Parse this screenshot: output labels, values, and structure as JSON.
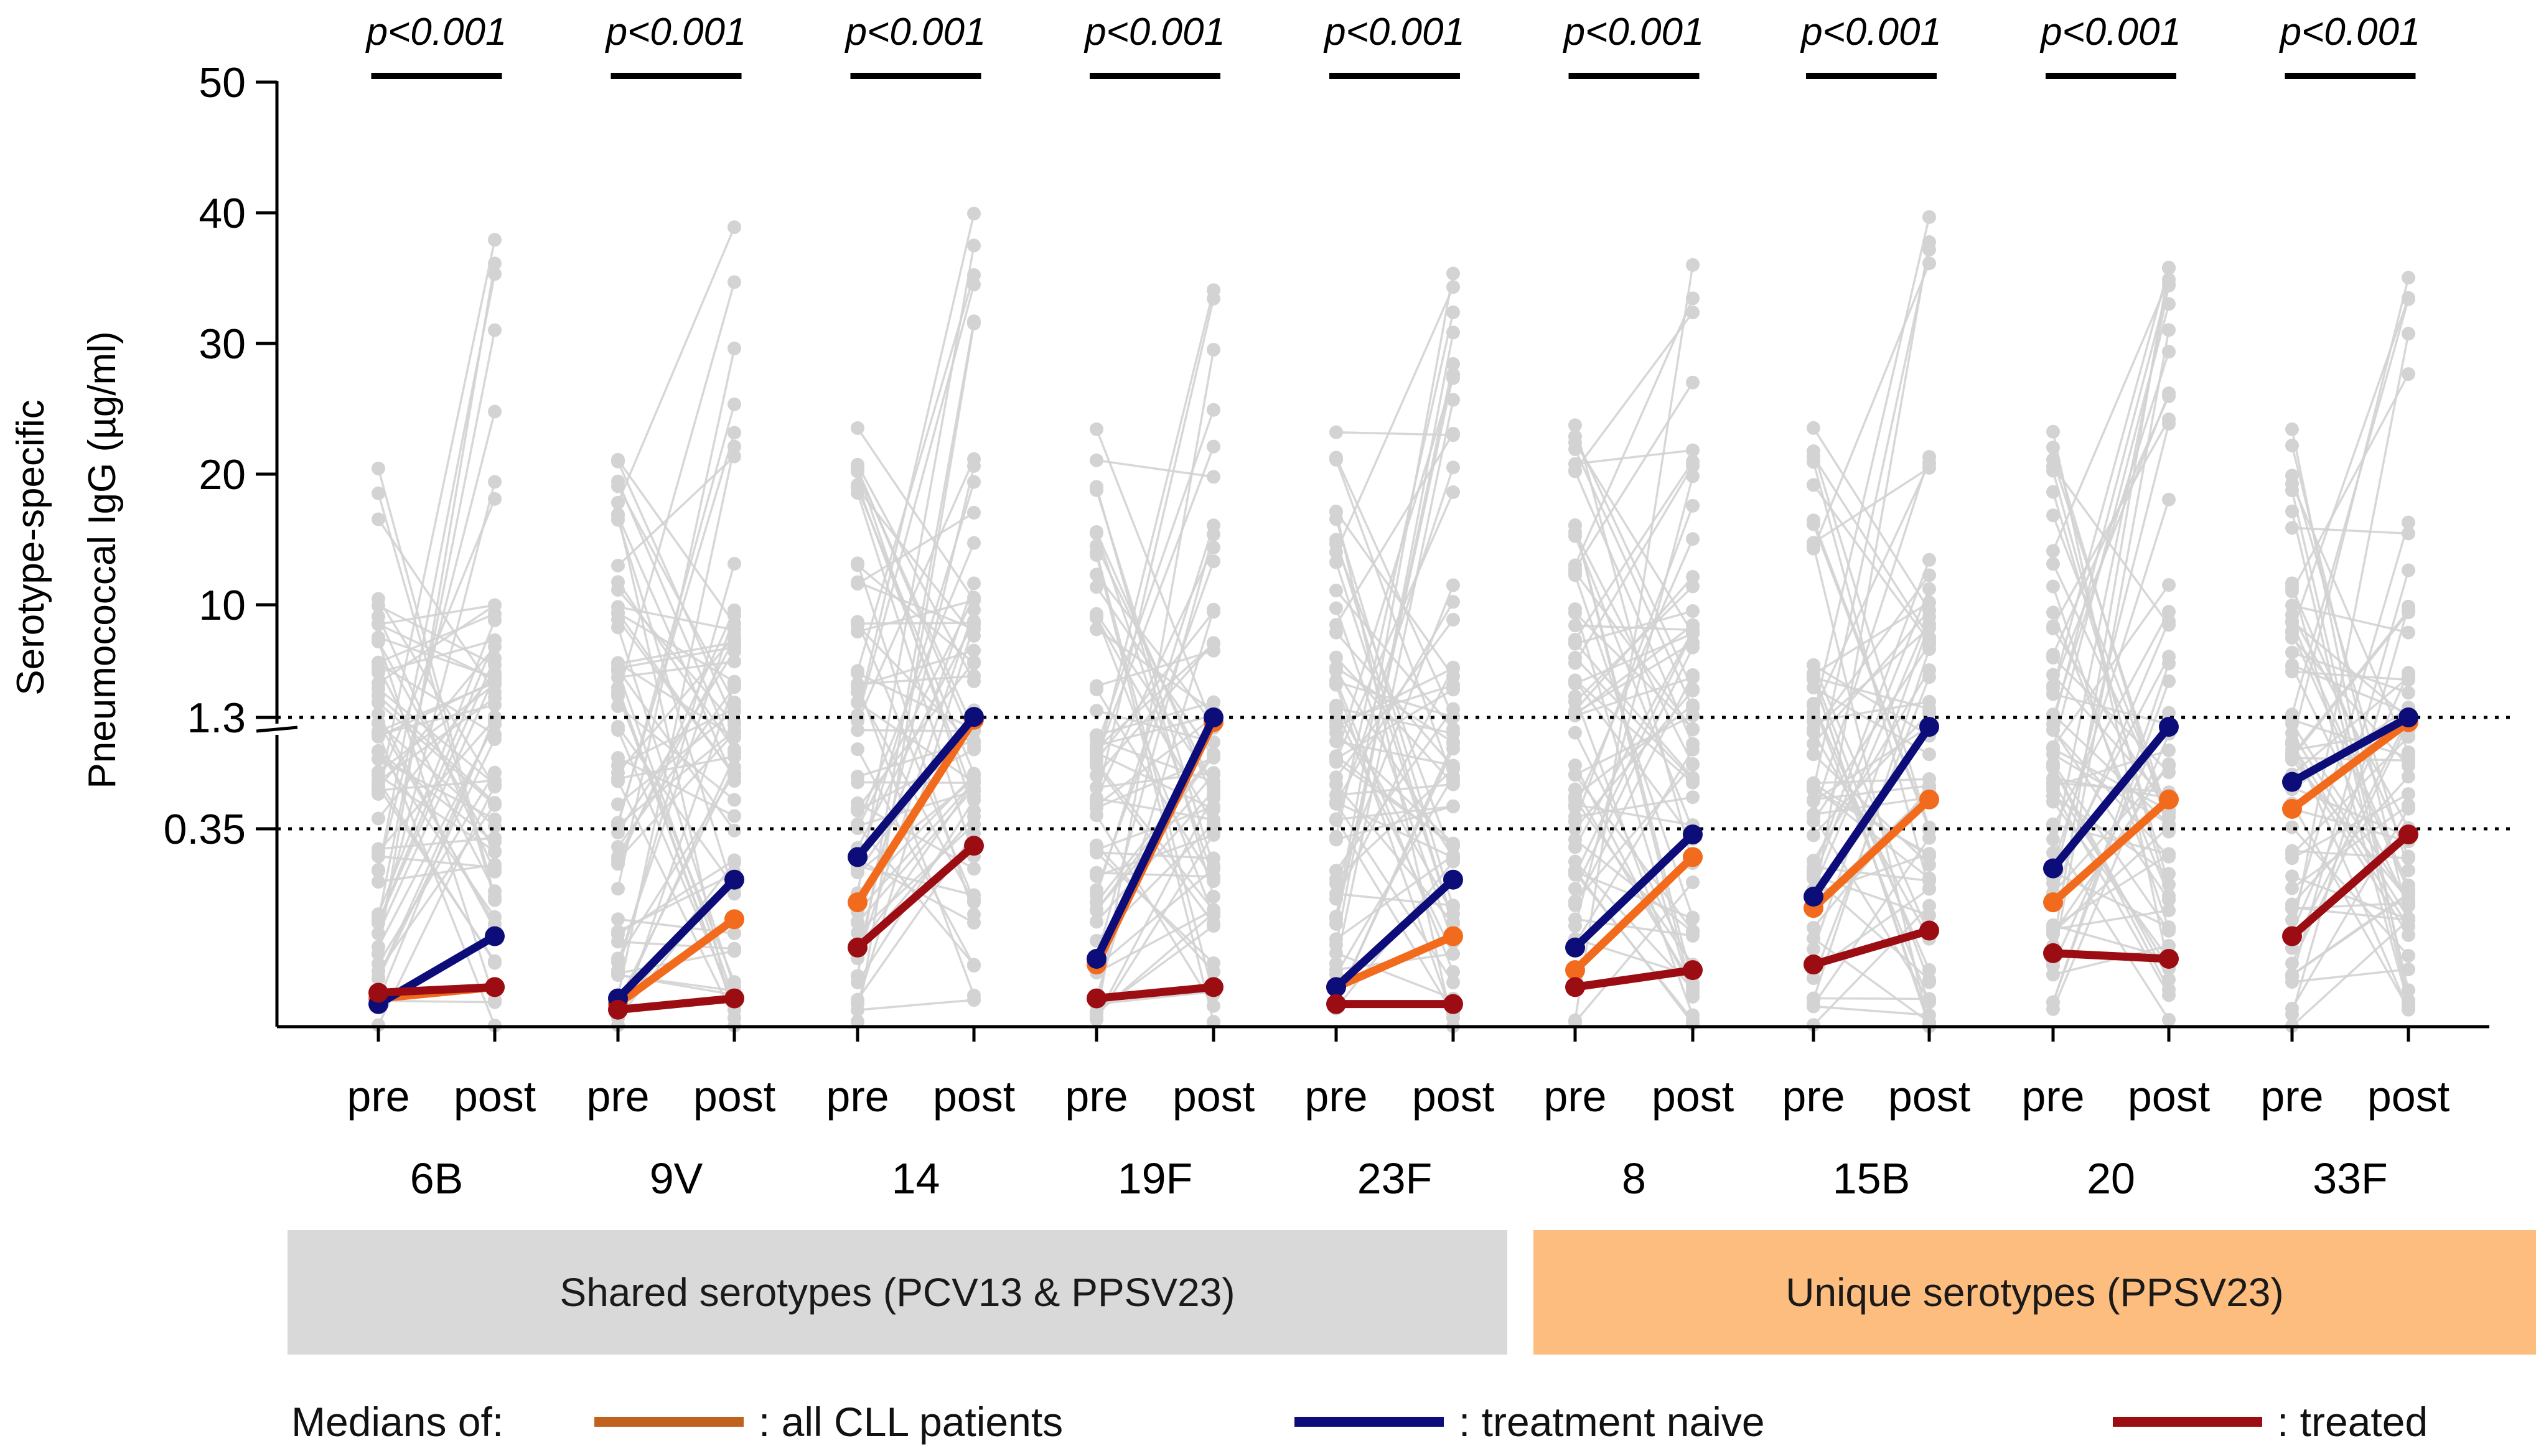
{
  "chart_data": {
    "type": "line",
    "ylabel_line1": "Serotype-specific",
    "ylabel_line2": "Pneumococcal IgG (µg/ml)",
    "y_ticks": [
      "50",
      "40",
      "30",
      "20",
      "10",
      "1.3",
      "0.35"
    ],
    "y_axis_note": "broken scale: linear 10-50 above 1.3, compressed below 1.3",
    "thresholds": [
      1.3,
      0.35
    ],
    "x_sublabels": [
      "pre",
      "post"
    ],
    "categories": [
      "6B",
      "9V",
      "14",
      "19F",
      "23F",
      "8",
      "15B",
      "20",
      "33F"
    ],
    "significance": [
      "p<0.001",
      "p<0.001",
      "p<0.001",
      "p<0.001",
      "p<0.001",
      "p<0.001",
      "p<0.001",
      "p<0.001",
      "p<0.001"
    ],
    "series": [
      {
        "name": "all CLL patients",
        "color": "#f26b1d",
        "pre": [
          0.05,
          0.04,
          0.22,
          0.11,
          0.07,
          0.1,
          0.21,
          0.22,
          0.52
        ],
        "post": [
          0.07,
          0.19,
          1.28,
          1.26,
          0.16,
          0.3,
          0.6,
          0.6,
          1.26
        ]
      },
      {
        "name": "treatment naive",
        "color": "#0d0d7a",
        "pre": [
          0.04,
          0.05,
          0.3,
          0.12,
          0.07,
          0.14,
          0.23,
          0.28,
          0.75
        ],
        "post": [
          0.16,
          0.26,
          1.34,
          1.3,
          0.26,
          0.34,
          1.22,
          1.22,
          1.3
        ]
      },
      {
        "name": "treated",
        "color": "#9b0d12",
        "pre": [
          0.06,
          0.03,
          0.14,
          0.05,
          0.04,
          0.07,
          0.11,
          0.13,
          0.16
        ],
        "post": [
          0.07,
          0.05,
          0.32,
          0.07,
          0.04,
          0.1,
          0.17,
          0.12,
          0.34
        ]
      }
    ],
    "individual_patients_color": "#d3d3d3",
    "groups": [
      {
        "label": "Shared serotypes (PCV13 & PPSV23)",
        "color": "#d9d9d9"
      },
      {
        "label": "Unique serotypes (PPSV23)",
        "color": "#fdbd7e"
      }
    ],
    "legend": {
      "title": "Medians of:",
      "items": [
        {
          "label": ": all CLL patients",
          "color": "#c0621e"
        },
        {
          "label": ": treatment naive",
          "color": "#0d0d7a"
        },
        {
          "label": ": treated",
          "color": "#9b0d12"
        }
      ]
    }
  }
}
